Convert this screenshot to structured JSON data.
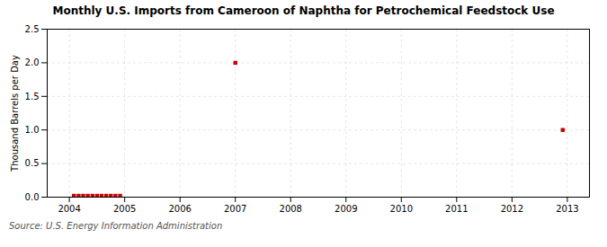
{
  "chart_data": {
    "type": "scatter",
    "title": "Monthly U.S. Imports from Cameroon of Naphtha for Petrochemical Feedstock Use",
    "ylabel": "Thousand Barrels per Day",
    "source": "Source: U.S. Energy Information Administration",
    "color": "#cc0000",
    "marker": "square",
    "grid": true,
    "xlim": [
      2003.6,
      2013.4
    ],
    "xticks": [
      2004,
      2005,
      2006,
      2007,
      2008,
      2009,
      2010,
      2011,
      2012,
      2013
    ],
    "ylim": [
      0.0,
      2.5
    ],
    "yticks": [
      {
        "value": 0.0,
        "label": "0.0"
      },
      0.5,
      {
        "value": 1.0,
        "label": "1.0"
      },
      1.5,
      {
        "value": 2.0,
        "label": "2.0"
      },
      2.5
    ],
    "x": [
      2004.083,
      2004.167,
      2004.25,
      2004.333,
      2004.417,
      2004.5,
      2004.583,
      2004.667,
      2004.75,
      2004.833,
      2004.917,
      2007.0,
      2012.917
    ],
    "values": [
      0.02,
      0.02,
      0.02,
      0.02,
      0.02,
      0.02,
      0.02,
      0.02,
      0.02,
      0.02,
      0.02,
      2.0,
      1.0
    ]
  }
}
